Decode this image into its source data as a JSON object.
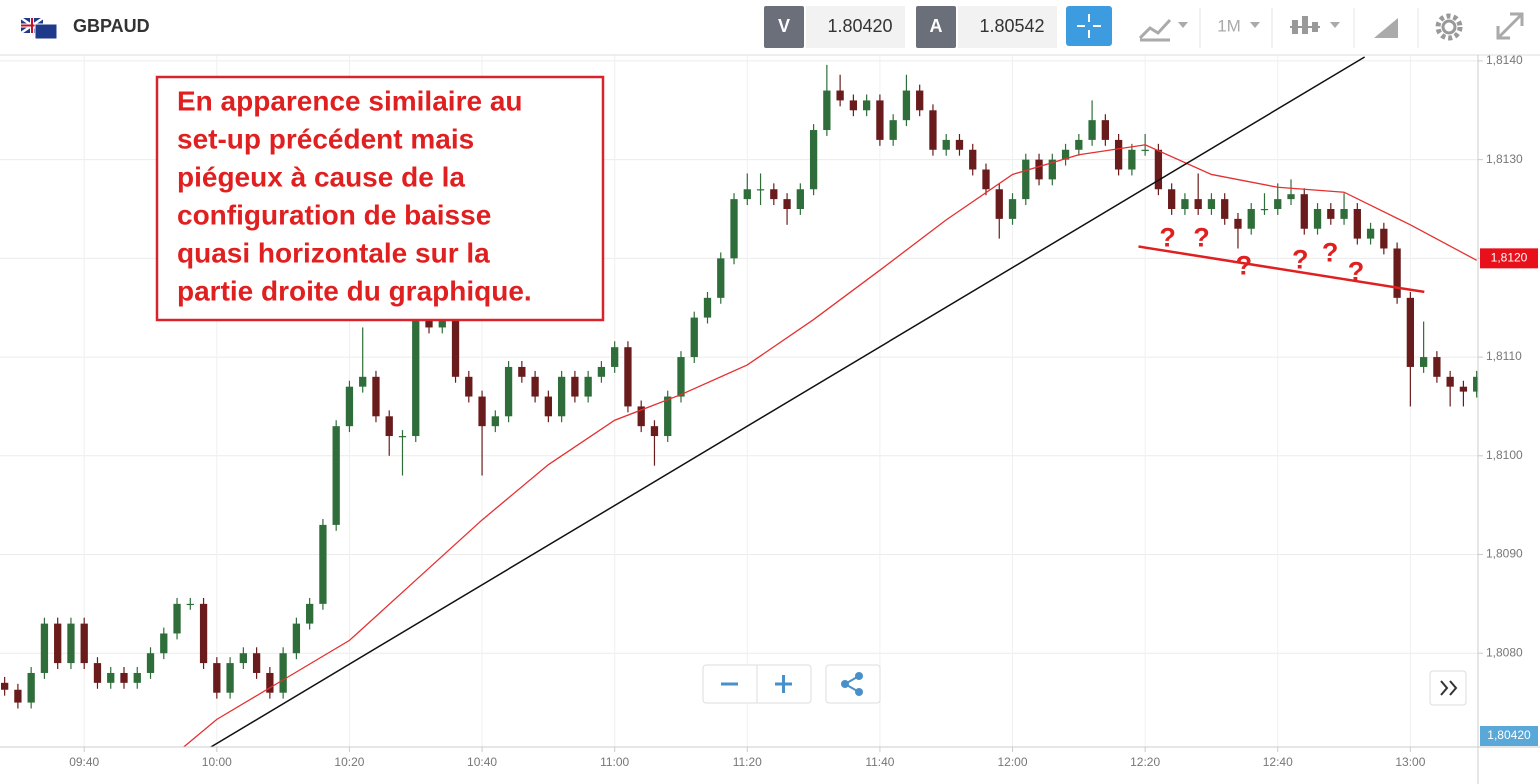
{
  "header": {
    "symbol": "GBPAUD",
    "bid_label": "V",
    "bid": "1.80420",
    "ask_label": "A",
    "ask": "1.80542",
    "timeframe": "1M"
  },
  "chart_data": {
    "type": "candlestick",
    "xlim": [
      567.3,
      790.2
    ],
    "ylim": [
      1.80705,
      1.81406
    ],
    "xticks": [
      {
        "value": 580,
        "label": "09:40"
      },
      {
        "value": 600,
        "label": "10:00"
      },
      {
        "value": 620,
        "label": "10:20"
      },
      {
        "value": 640,
        "label": "10:40"
      },
      {
        "value": 660,
        "label": "11:00"
      },
      {
        "value": 680,
        "label": "11:20"
      },
      {
        "value": 700,
        "label": "11:40"
      },
      {
        "value": 720,
        "label": "12:00"
      },
      {
        "value": 740,
        "label": "12:20"
      },
      {
        "value": 760,
        "label": "12:40"
      },
      {
        "value": 780,
        "label": "13:00"
      }
    ],
    "yticks": [
      {
        "value": 1.808,
        "label": "1,8080"
      },
      {
        "value": 1.809,
        "label": "1,8090"
      },
      {
        "value": 1.81,
        "label": "1,8100"
      },
      {
        "value": 1.811,
        "label": "1,8110"
      },
      {
        "value": 1.812,
        "label": "1,8120"
      },
      {
        "value": 1.813,
        "label": "1,8130"
      },
      {
        "value": 1.814,
        "label": "1,8140"
      }
    ],
    "grid": true,
    "candles": {
      "up_color": "#2f6e3a",
      "down_color": "#6a1c1c",
      "x": [
        568,
        570,
        572,
        574,
        576,
        578,
        580,
        582,
        584,
        586,
        588,
        590,
        592,
        594,
        596,
        598,
        600,
        602,
        604,
        606,
        608,
        610,
        612,
        614,
        616,
        618,
        620,
        622,
        624,
        626,
        628,
        630,
        632,
        634,
        636,
        638,
        640,
        642,
        644,
        646,
        648,
        650,
        652,
        654,
        656,
        658,
        660,
        662,
        664,
        666,
        668,
        670,
        672,
        674,
        676,
        678,
        680,
        682,
        684,
        686,
        688,
        690,
        692,
        694,
        696,
        698,
        700,
        702,
        704,
        706,
        708,
        710,
        712,
        714,
        716,
        718,
        720,
        722,
        724,
        726,
        728,
        730,
        732,
        734,
        736,
        738,
        740,
        742,
        744,
        746,
        748,
        750,
        752,
        754,
        756,
        758,
        760,
        762,
        764,
        766,
        768,
        770,
        772,
        774,
        776,
        778,
        780,
        782,
        784,
        786,
        788,
        790
      ],
      "open": [
        1.8077,
        1.80763,
        1.8075,
        1.8078,
        1.8083,
        1.8079,
        1.8083,
        1.8079,
        1.8077,
        1.8078,
        1.8077,
        1.8078,
        1.808,
        1.8082,
        1.8085,
        1.8085,
        1.8079,
        1.8076,
        1.8079,
        1.808,
        1.8078,
        1.8076,
        1.808,
        1.8083,
        1.8085,
        1.8093,
        1.8103,
        1.8107,
        1.8108,
        1.8104,
        1.8102,
        1.8102,
        1.8116,
        1.8113,
        1.8114,
        1.8108,
        1.8106,
        1.8103,
        1.8104,
        1.8109,
        1.8108,
        1.8106,
        1.8104,
        1.8108,
        1.8106,
        1.8108,
        1.8109,
        1.8111,
        1.8105,
        1.8103,
        1.8102,
        1.8106,
        1.811,
        1.8114,
        1.8116,
        1.812,
        1.8126,
        1.8127,
        1.8127,
        1.8126,
        1.8125,
        1.8127,
        1.8133,
        1.8137,
        1.8136,
        1.8135,
        1.8136,
        1.8132,
        1.8134,
        1.8137,
        1.8135,
        1.8131,
        1.8132,
        1.8131,
        1.8129,
        1.8127,
        1.8124,
        1.8126,
        1.813,
        1.8128,
        1.813,
        1.8131,
        1.8132,
        1.8134,
        1.8132,
        1.8129,
        1.8131,
        1.8131,
        1.8127,
        1.8125,
        1.8126,
        1.8125,
        1.8126,
        1.8124,
        1.8123,
        1.8125,
        1.8125,
        1.8126,
        1.81265,
        1.8123,
        1.8125,
        1.8124,
        1.8125,
        1.8122,
        1.8123,
        1.8121,
        1.8116,
        1.8109,
        1.811,
        1.8108,
        1.8107,
        1.81065
      ],
      "high": [
        1.80776,
        1.80769,
        1.80786,
        1.80836,
        1.80836,
        1.80836,
        1.80836,
        1.80796,
        1.80786,
        1.80786,
        1.80786,
        1.80806,
        1.80826,
        1.80856,
        1.80856,
        1.80856,
        1.80796,
        1.80796,
        1.80806,
        1.80806,
        1.80786,
        1.80806,
        1.80836,
        1.80856,
        1.80936,
        1.81036,
        1.81076,
        1.8113,
        1.81086,
        1.81046,
        1.81026,
        1.81166,
        1.81166,
        1.81166,
        1.81146,
        1.81086,
        1.81066,
        1.81046,
        1.81096,
        1.81096,
        1.81086,
        1.81066,
        1.81086,
        1.81086,
        1.81086,
        1.81096,
        1.81116,
        1.81116,
        1.81056,
        1.81036,
        1.81066,
        1.81106,
        1.81146,
        1.81166,
        1.81206,
        1.81266,
        1.81286,
        1.81286,
        1.81276,
        1.81266,
        1.81276,
        1.81336,
        1.81396,
        1.81386,
        1.81366,
        1.81366,
        1.81366,
        1.81346,
        1.81386,
        1.81376,
        1.81356,
        1.81326,
        1.81326,
        1.81316,
        1.81296,
        1.81276,
        1.81266,
        1.81306,
        1.81306,
        1.81306,
        1.81316,
        1.81326,
        1.8136,
        1.81346,
        1.81326,
        1.81316,
        1.81326,
        1.81316,
        1.81276,
        1.81266,
        1.81286,
        1.81266,
        1.81266,
        1.81246,
        1.81256,
        1.81266,
        1.81276,
        1.8128,
        1.81271,
        1.81256,
        1.81256,
        1.81266,
        1.81256,
        1.81236,
        1.81236,
        1.81216,
        1.81166,
        1.81136,
        1.81106,
        1.81086,
        1.81076,
        1.81086
      ],
      "low": [
        1.80757,
        1.80744,
        1.80744,
        1.80774,
        1.80784,
        1.80784,
        1.80784,
        1.80764,
        1.80764,
        1.80764,
        1.80764,
        1.80774,
        1.80794,
        1.80814,
        1.80844,
        1.80784,
        1.80754,
        1.80754,
        1.80784,
        1.80774,
        1.80754,
        1.80754,
        1.80794,
        1.80824,
        1.80844,
        1.80924,
        1.81024,
        1.81064,
        1.81034,
        1.81,
        1.8098,
        1.81014,
        1.81124,
        1.81124,
        1.81074,
        1.81054,
        1.8098,
        1.81024,
        1.81034,
        1.81074,
        1.81054,
        1.81034,
        1.81034,
        1.81054,
        1.81054,
        1.81074,
        1.81084,
        1.81044,
        1.81024,
        1.8099,
        1.81014,
        1.81054,
        1.81094,
        1.81134,
        1.81154,
        1.81194,
        1.81254,
        1.81254,
        1.81254,
        1.81234,
        1.81244,
        1.81264,
        1.81324,
        1.81354,
        1.81344,
        1.81344,
        1.81314,
        1.81314,
        1.81334,
        1.81344,
        1.81304,
        1.81304,
        1.81304,
        1.81284,
        1.81264,
        1.8122,
        1.81234,
        1.81254,
        1.81274,
        1.81274,
        1.81294,
        1.81304,
        1.81314,
        1.81314,
        1.81284,
        1.81284,
        1.81304,
        1.81264,
        1.81244,
        1.81244,
        1.81244,
        1.81244,
        1.81234,
        1.8121,
        1.81224,
        1.81244,
        1.81244,
        1.81254,
        1.81224,
        1.81224,
        1.81234,
        1.81234,
        1.81214,
        1.81214,
        1.81204,
        1.81154,
        1.8105,
        1.81084,
        1.81074,
        1.8105,
        1.8105,
        1.81059
      ],
      "close": [
        1.80763,
        1.8075,
        1.8078,
        1.8083,
        1.8079,
        1.8083,
        1.8079,
        1.8077,
        1.8078,
        1.8077,
        1.8078,
        1.808,
        1.8082,
        1.8085,
        1.8085,
        1.8079,
        1.8076,
        1.8079,
        1.808,
        1.8078,
        1.8076,
        1.808,
        1.8083,
        1.8085,
        1.8093,
        1.8103,
        1.8107,
        1.8108,
        1.8104,
        1.8102,
        1.8102,
        1.8116,
        1.8113,
        1.8114,
        1.8108,
        1.8106,
        1.8103,
        1.8104,
        1.8109,
        1.8108,
        1.8106,
        1.8104,
        1.8108,
        1.8106,
        1.8108,
        1.8109,
        1.8111,
        1.8105,
        1.8103,
        1.8102,
        1.8106,
        1.811,
        1.8114,
        1.8116,
        1.812,
        1.8126,
        1.8127,
        1.8127,
        1.8126,
        1.8125,
        1.8127,
        1.8133,
        1.8137,
        1.8136,
        1.8135,
        1.8136,
        1.8132,
        1.8134,
        1.8137,
        1.8135,
        1.8131,
        1.8132,
        1.8131,
        1.8129,
        1.8127,
        1.8124,
        1.8126,
        1.813,
        1.8128,
        1.813,
        1.8131,
        1.8132,
        1.8134,
        1.8132,
        1.8129,
        1.8131,
        1.8131,
        1.8127,
        1.8125,
        1.8126,
        1.8125,
        1.8126,
        1.8124,
        1.8123,
        1.8125,
        1.8125,
        1.8126,
        1.81265,
        1.8123,
        1.8125,
        1.8124,
        1.8125,
        1.8122,
        1.8123,
        1.8121,
        1.8116,
        1.8109,
        1.811,
        1.8108,
        1.8107,
        1.81065,
        1.8108
      ]
    },
    "moving_average": {
      "color": "#e53030",
      "x": [
        595,
        600,
        610,
        620,
        630,
        640,
        650,
        660,
        670,
        680,
        690,
        700,
        710,
        720,
        730,
        740,
        750,
        760,
        770,
        780,
        790
      ],
      "values": [
        1.80705,
        1.80733,
        1.80773,
        1.80813,
        1.80874,
        1.80935,
        1.80991,
        1.81036,
        1.81062,
        1.81092,
        1.81138,
        1.81188,
        1.81239,
        1.81285,
        1.81305,
        1.81315,
        1.81285,
        1.81272,
        1.81267,
        1.81234,
        1.81198
      ]
    },
    "trendline": {
      "color": "#111111",
      "x": [
        599.1,
        773.1
      ],
      "values": [
        1.80705,
        1.81404
      ]
    },
    "support_line": {
      "color": "#e02020",
      "x": [
        739.0,
        782.1
      ],
      "values": [
        1.81212,
        1.81166
      ]
    },
    "question_marks": {
      "text": "?",
      "x": [
        743.4,
        748.5,
        754.9,
        763.4,
        767.9,
        771.8
      ],
      "values": [
        1.81219,
        1.81219,
        1.81191,
        1.81197,
        1.81204,
        1.81185
      ]
    },
    "annotation_lines": [
      "En apparence similaire au",
      "set-up précédent mais",
      "piégeux à cause de la",
      "configuration de baisse",
      "quasi horizontale sur la",
      "partie droite du graphique."
    ],
    "price_tags": [
      {
        "value": 1.812,
        "label": "1,8120",
        "color": "#e8101a"
      },
      {
        "label": "1,80420",
        "color": "#5aa8d8"
      }
    ]
  }
}
